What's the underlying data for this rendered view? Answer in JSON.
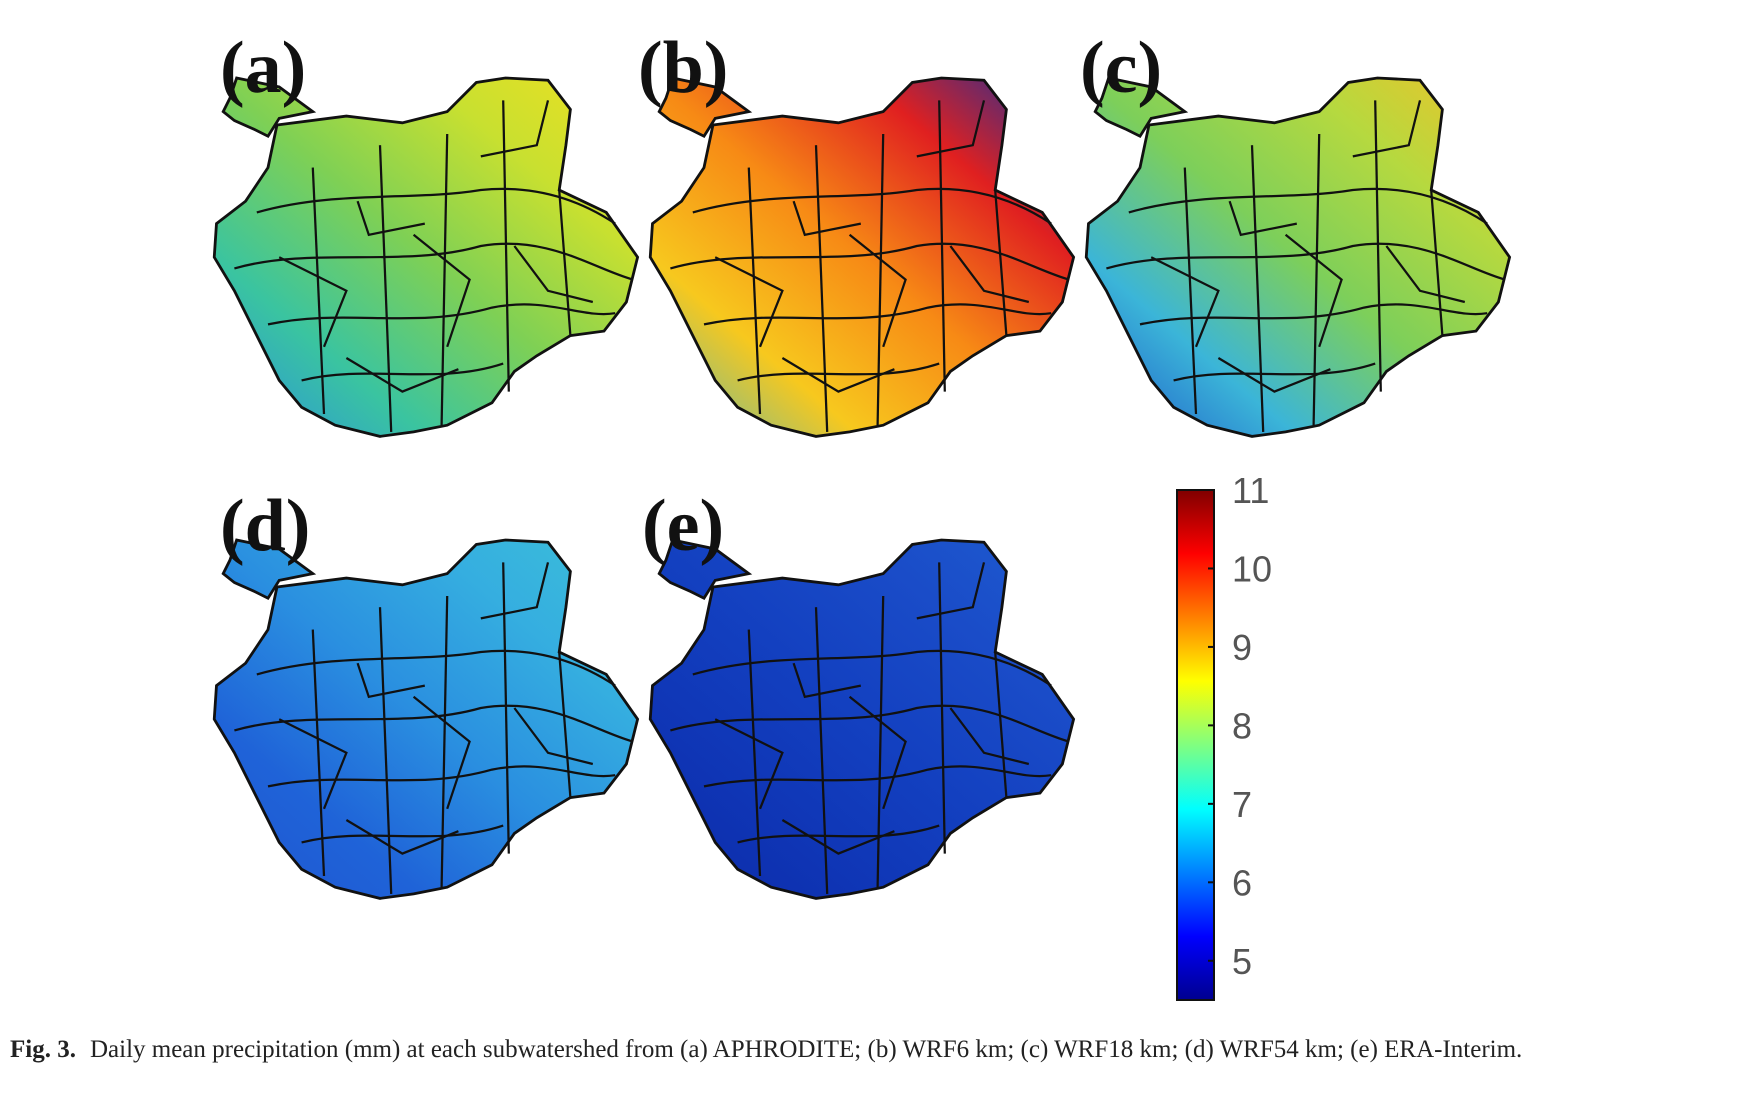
{
  "figure": {
    "panels": [
      {
        "label": "(a)",
        "source": "APHRODITE",
        "gradient": [
          "#2a8fe0",
          "#3ac4a0",
          "#7ed055",
          "#c8e030",
          "#f0e020"
        ]
      },
      {
        "label": "(b)",
        "source": "WRF6 km",
        "gradient": [
          "#5ab8b0",
          "#f7c81e",
          "#f78a15",
          "#e02020",
          "#1030a0"
        ]
      },
      {
        "label": "(c)",
        "source": "WRF18 km",
        "gradient": [
          "#1c52c8",
          "#3bb5d8",
          "#7dcf5a",
          "#b6d93f",
          "#f1c127"
        ]
      },
      {
        "label": "(d)",
        "source": "WRF54 km",
        "gradient": [
          "#1f55d0",
          "#1f63d8",
          "#2a8fe0",
          "#35aee0",
          "#3cc0d8"
        ]
      },
      {
        "label": "(e)",
        "source": "ERA-Interim",
        "gradient": [
          "#0c2aa8",
          "#0f35b5",
          "#1340c0",
          "#1a4cc8",
          "#1e5cd0"
        ]
      }
    ],
    "colorbar": {
      "min": 4.5,
      "max": 11,
      "ticks": [
        5,
        6,
        7,
        8,
        9,
        10,
        11
      ],
      "colormap": [
        "#00008f",
        "#0000ff",
        "#0080ff",
        "#00ffff",
        "#80ff80",
        "#ffff00",
        "#ff8000",
        "#ff0000",
        "#800000"
      ]
    }
  },
  "caption": {
    "label": "Fig. 3.",
    "text": "Daily mean precipitation (mm) at each subwatershed from (a) APHRODITE; (b) WRF6 km; (c) WRF18 km; (d) WRF54 km; (e) ERA-Interim."
  }
}
